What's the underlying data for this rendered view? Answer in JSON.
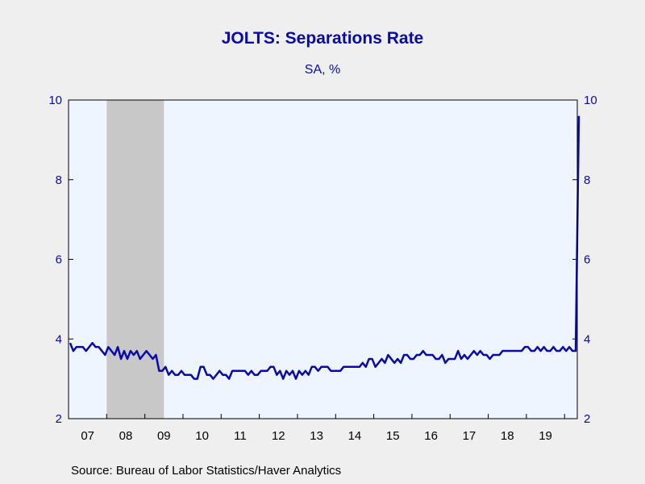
{
  "chart_data": {
    "type": "line",
    "title": "JOLTS: Separations Rate",
    "subtitle": "SA, %",
    "source": "Source:  Bureau of Labor Statistics/Haver Analytics",
    "ylim": [
      2,
      10
    ],
    "yticks": [
      2,
      4,
      6,
      8,
      10
    ],
    "x_start": "2007-01",
    "x_end": "2020-04",
    "x_tick_labels": [
      "07",
      "08",
      "09",
      "10",
      "11",
      "12",
      "13",
      "14",
      "15",
      "16",
      "17",
      "18",
      "19"
    ],
    "recession_shading": {
      "start": "2008-01",
      "end": "2009-06",
      "color": "#c8c8c8"
    },
    "colors": {
      "line": "#0a0aa8",
      "plot_bg": "#eef5ff",
      "page_bg": "#efefef",
      "text": "#0a0aa8"
    },
    "series": [
      {
        "start": "2007-01",
        "values": [
          3.9,
          3.7,
          3.8,
          3.8,
          3.8,
          3.7,
          3.8,
          3.9,
          3.8,
          3.8,
          3.7,
          3.6,
          3.8,
          3.7,
          3.6,
          3.8,
          3.5,
          3.7,
          3.5,
          3.7,
          3.6,
          3.7,
          3.5,
          3.6,
          3.7,
          3.6,
          3.5,
          3.6,
          3.2,
          3.2,
          3.3,
          3.1,
          3.2,
          3.1,
          3.1,
          3.2,
          3.1,
          3.1,
          3.1,
          3.0,
          3.0,
          3.3,
          3.3,
          3.1,
          3.1,
          3.0,
          3.1,
          3.2,
          3.1,
          3.1,
          3.0,
          3.2,
          3.2,
          3.2,
          3.2,
          3.2,
          3.1,
          3.2,
          3.1,
          3.1,
          3.2,
          3.2,
          3.2,
          3.3,
          3.3,
          3.1,
          3.2,
          3.0,
          3.2,
          3.1,
          3.2,
          3.0,
          3.2,
          3.1,
          3.2,
          3.1,
          3.3,
          3.3,
          3.2,
          3.3,
          3.3,
          3.3,
          3.2,
          3.2,
          3.2,
          3.2,
          3.3,
          3.3,
          3.3,
          3.3,
          3.3,
          3.3,
          3.4,
          3.3,
          3.5,
          3.5,
          3.3,
          3.4,
          3.5,
          3.4,
          3.6,
          3.5,
          3.4,
          3.5,
          3.4,
          3.6,
          3.6,
          3.5,
          3.5,
          3.6,
          3.6,
          3.7,
          3.6,
          3.6,
          3.6,
          3.5,
          3.5,
          3.6,
          3.4,
          3.5,
          3.5,
          3.5,
          3.7,
          3.5,
          3.6,
          3.5,
          3.6,
          3.7,
          3.6,
          3.7,
          3.6,
          3.6,
          3.5,
          3.6,
          3.6,
          3.6,
          3.7,
          3.7,
          3.7,
          3.7,
          3.7,
          3.7,
          3.7,
          3.8,
          3.8,
          3.7,
          3.7,
          3.8,
          3.7,
          3.8,
          3.7,
          3.7,
          3.8,
          3.7,
          3.7,
          3.8,
          3.7,
          3.8,
          3.7,
          3.7,
          9.6
        ]
      }
    ]
  }
}
